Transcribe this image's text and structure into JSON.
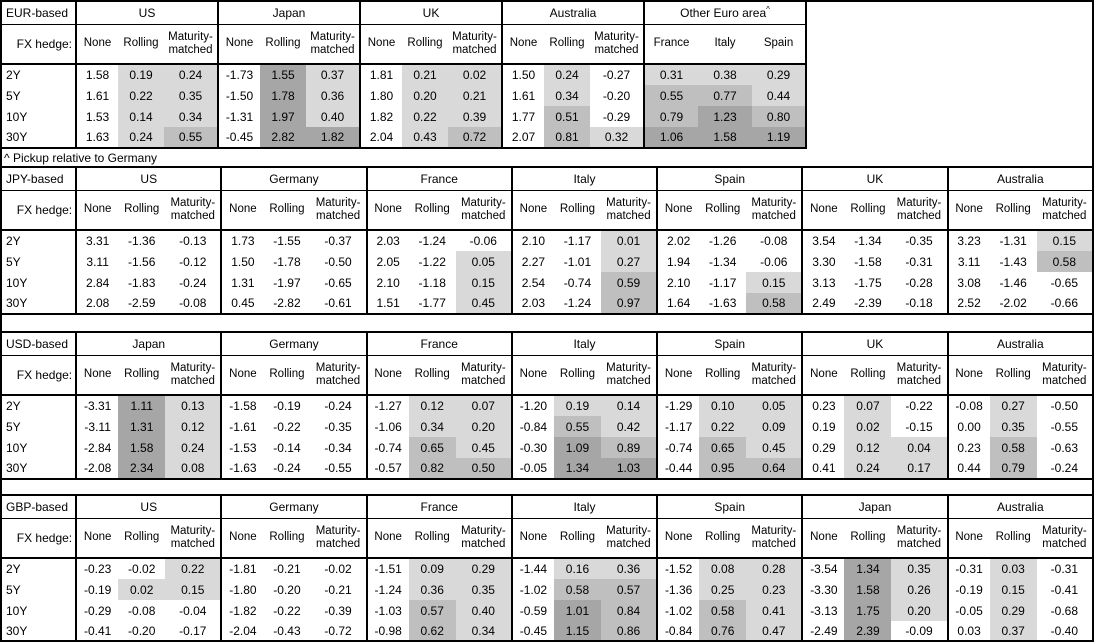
{
  "note": "^ Pickup relative to Germany",
  "fx_hedge_label": "FX hedge:",
  "tenors": [
    "2Y",
    "5Y",
    "10Y",
    "30Y"
  ],
  "hedge_columns": [
    "None",
    "Rolling",
    "Maturity-matched"
  ],
  "colors": {
    "shade_low": "#d9d9d9",
    "shade_mid": "#bfbfbf",
    "shade_high": "#a6a6a6",
    "border": "#000000",
    "background": "#ffffff"
  },
  "tables": [
    {
      "base_label": "EUR-based",
      "groups": [
        {
          "name": "US",
          "rows": [
            [
              "1.58",
              "0.19",
              "0.24"
            ],
            [
              "1.61",
              "0.22",
              "0.35"
            ],
            [
              "1.53",
              "0.14",
              "0.34"
            ],
            [
              "1.63",
              "0.24",
              "0.55"
            ]
          ]
        },
        {
          "name": "Japan",
          "rows": [
            [
              "-1.73",
              "1.55",
              "0.37"
            ],
            [
              "-1.50",
              "1.78",
              "0.36"
            ],
            [
              "-1.31",
              "1.97",
              "0.40"
            ],
            [
              "-0.45",
              "2.82",
              "1.82"
            ]
          ]
        },
        {
          "name": "UK",
          "rows": [
            [
              "1.81",
              "0.21",
              "0.02"
            ],
            [
              "1.80",
              "0.20",
              "0.21"
            ],
            [
              "1.82",
              "0.22",
              "0.39"
            ],
            [
              "2.04",
              "0.43",
              "0.72"
            ]
          ]
        },
        {
          "name": "Australia",
          "rows": [
            [
              "1.50",
              "0.24",
              "-0.27"
            ],
            [
              "1.61",
              "0.34",
              "-0.20"
            ],
            [
              "1.77",
              "0.51",
              "-0.29"
            ],
            [
              "2.07",
              "0.81",
              "0.32"
            ]
          ]
        },
        {
          "name": "Other Euro area",
          "sup": "^",
          "cols": [
            "France",
            "Italy",
            "Spain"
          ],
          "all_shaded": true,
          "rows": [
            [
              "0.31",
              "0.38",
              "0.29"
            ],
            [
              "0.55",
              "0.77",
              "0.44"
            ],
            [
              "0.79",
              "1.23",
              "0.80"
            ],
            [
              "1.06",
              "1.58",
              "1.19"
            ]
          ]
        }
      ]
    },
    {
      "base_label": "JPY-based",
      "groups": [
        {
          "name": "US",
          "rows": [
            [
              "3.31",
              "-1.36",
              "-0.13"
            ],
            [
              "3.11",
              "-1.56",
              "-0.12"
            ],
            [
              "2.84",
              "-1.83",
              "-0.24"
            ],
            [
              "2.08",
              "-2.59",
              "-0.08"
            ]
          ]
        },
        {
          "name": "Germany",
          "rows": [
            [
              "1.73",
              "-1.55",
              "-0.37"
            ],
            [
              "1.50",
              "-1.78",
              "-0.50"
            ],
            [
              "1.31",
              "-1.97",
              "-0.65"
            ],
            [
              "0.45",
              "-2.82",
              "-0.61"
            ]
          ]
        },
        {
          "name": "France",
          "rows": [
            [
              "2.03",
              "-1.24",
              "-0.06"
            ],
            [
              "2.05",
              "-1.22",
              "0.05"
            ],
            [
              "2.10",
              "-1.18",
              "0.15"
            ],
            [
              "1.51",
              "-1.77",
              "0.45"
            ]
          ]
        },
        {
          "name": "Italy",
          "rows": [
            [
              "2.10",
              "-1.17",
              "0.01"
            ],
            [
              "2.27",
              "-1.01",
              "0.27"
            ],
            [
              "2.54",
              "-0.74",
              "0.59"
            ],
            [
              "2.03",
              "-1.24",
              "0.97"
            ]
          ]
        },
        {
          "name": "Spain",
          "rows": [
            [
              "2.02",
              "-1.26",
              "-0.08"
            ],
            [
              "1.94",
              "-1.34",
              "-0.06"
            ],
            [
              "2.10",
              "-1.17",
              "0.15"
            ],
            [
              "1.64",
              "-1.63",
              "0.58"
            ]
          ]
        },
        {
          "name": "UK",
          "rows": [
            [
              "3.54",
              "-1.34",
              "-0.35"
            ],
            [
              "3.30",
              "-1.58",
              "-0.31"
            ],
            [
              "3.13",
              "-1.75",
              "-0.28"
            ],
            [
              "2.49",
              "-2.39",
              "-0.18"
            ]
          ]
        },
        {
          "name": "Australia",
          "rows": [
            [
              "3.23",
              "-1.31",
              "0.15"
            ],
            [
              "3.11",
              "-1.43",
              "0.58"
            ],
            [
              "3.08",
              "-1.46",
              "-0.65"
            ],
            [
              "2.52",
              "-2.02",
              "-0.66"
            ]
          ]
        }
      ]
    },
    {
      "base_label": "USD-based",
      "groups": [
        {
          "name": "Japan",
          "rows": [
            [
              "-3.31",
              "1.11",
              "0.13"
            ],
            [
              "-3.11",
              "1.31",
              "0.12"
            ],
            [
              "-2.84",
              "1.58",
              "0.24"
            ],
            [
              "-2.08",
              "2.34",
              "0.08"
            ]
          ]
        },
        {
          "name": "Germany",
          "rows": [
            [
              "-1.58",
              "-0.19",
              "-0.24"
            ],
            [
              "-1.61",
              "-0.22",
              "-0.35"
            ],
            [
              "-1.53",
              "-0.14",
              "-0.34"
            ],
            [
              "-1.63",
              "-0.24",
              "-0.55"
            ]
          ]
        },
        {
          "name": "France",
          "rows": [
            [
              "-1.27",
              "0.12",
              "0.07"
            ],
            [
              "-1.06",
              "0.34",
              "0.20"
            ],
            [
              "-0.74",
              "0.65",
              "0.45"
            ],
            [
              "-0.57",
              "0.82",
              "0.50"
            ]
          ]
        },
        {
          "name": "Italy",
          "rows": [
            [
              "-1.20",
              "0.19",
              "0.14"
            ],
            [
              "-0.84",
              "0.55",
              "0.42"
            ],
            [
              "-0.30",
              "1.09",
              "0.89"
            ],
            [
              "-0.05",
              "1.34",
              "1.03"
            ]
          ]
        },
        {
          "name": "Spain",
          "rows": [
            [
              "-1.29",
              "0.10",
              "0.05"
            ],
            [
              "-1.17",
              "0.22",
              "0.09"
            ],
            [
              "-0.74",
              "0.65",
              "0.45"
            ],
            [
              "-0.44",
              "0.95",
              "0.64"
            ]
          ]
        },
        {
          "name": "UK",
          "rows": [
            [
              "0.23",
              "0.07",
              "-0.22"
            ],
            [
              "0.19",
              "0.02",
              "-0.15"
            ],
            [
              "0.29",
              "0.12",
              "0.04"
            ],
            [
              "0.41",
              "0.24",
              "0.17"
            ]
          ]
        },
        {
          "name": "Australia",
          "rows": [
            [
              "-0.08",
              "0.27",
              "-0.50"
            ],
            [
              "0.00",
              "0.35",
              "-0.55"
            ],
            [
              "0.23",
              "0.58",
              "-0.63"
            ],
            [
              "0.44",
              "0.79",
              "-0.24"
            ]
          ]
        }
      ]
    },
    {
      "base_label": "GBP-based",
      "groups": [
        {
          "name": "US",
          "rows": [
            [
              "-0.23",
              "-0.02",
              "0.22"
            ],
            [
              "-0.19",
              "0.02",
              "0.15"
            ],
            [
              "-0.29",
              "-0.08",
              "-0.04"
            ],
            [
              "-0.41",
              "-0.20",
              "-0.17"
            ]
          ]
        },
        {
          "name": "Germany",
          "rows": [
            [
              "-1.81",
              "-0.21",
              "-0.02"
            ],
            [
              "-1.80",
              "-0.20",
              "-0.21"
            ],
            [
              "-1.82",
              "-0.22",
              "-0.39"
            ],
            [
              "-2.04",
              "-0.43",
              "-0.72"
            ]
          ]
        },
        {
          "name": "France",
          "rows": [
            [
              "-1.51",
              "0.09",
              "0.29"
            ],
            [
              "-1.24",
              "0.36",
              "0.35"
            ],
            [
              "-1.03",
              "0.57",
              "0.40"
            ],
            [
              "-0.98",
              "0.62",
              "0.34"
            ]
          ]
        },
        {
          "name": "Italy",
          "rows": [
            [
              "-1.44",
              "0.16",
              "0.36"
            ],
            [
              "-1.02",
              "0.58",
              "0.57"
            ],
            [
              "-0.59",
              "1.01",
              "0.84"
            ],
            [
              "-0.45",
              "1.15",
              "0.86"
            ]
          ]
        },
        {
          "name": "Spain",
          "rows": [
            [
              "-1.52",
              "0.08",
              "0.28"
            ],
            [
              "-1.36",
              "0.25",
              "0.23"
            ],
            [
              "-1.02",
              "0.58",
              "0.41"
            ],
            [
              "-0.84",
              "0.76",
              "0.47"
            ]
          ]
        },
        {
          "name": "Japan",
          "rows": [
            [
              "-3.54",
              "1.34",
              "0.35"
            ],
            [
              "-3.30",
              "1.58",
              "0.26"
            ],
            [
              "-3.13",
              "1.75",
              "0.20"
            ],
            [
              "-2.49",
              "2.39",
              "-0.09"
            ]
          ]
        },
        {
          "name": "Australia",
          "rows": [
            [
              "-0.31",
              "0.03",
              "-0.31"
            ],
            [
              "-0.19",
              "0.15",
              "-0.41"
            ],
            [
              "-0.05",
              "0.29",
              "-0.68"
            ],
            [
              "0.03",
              "0.37",
              "-0.40"
            ]
          ]
        }
      ]
    }
  ]
}
